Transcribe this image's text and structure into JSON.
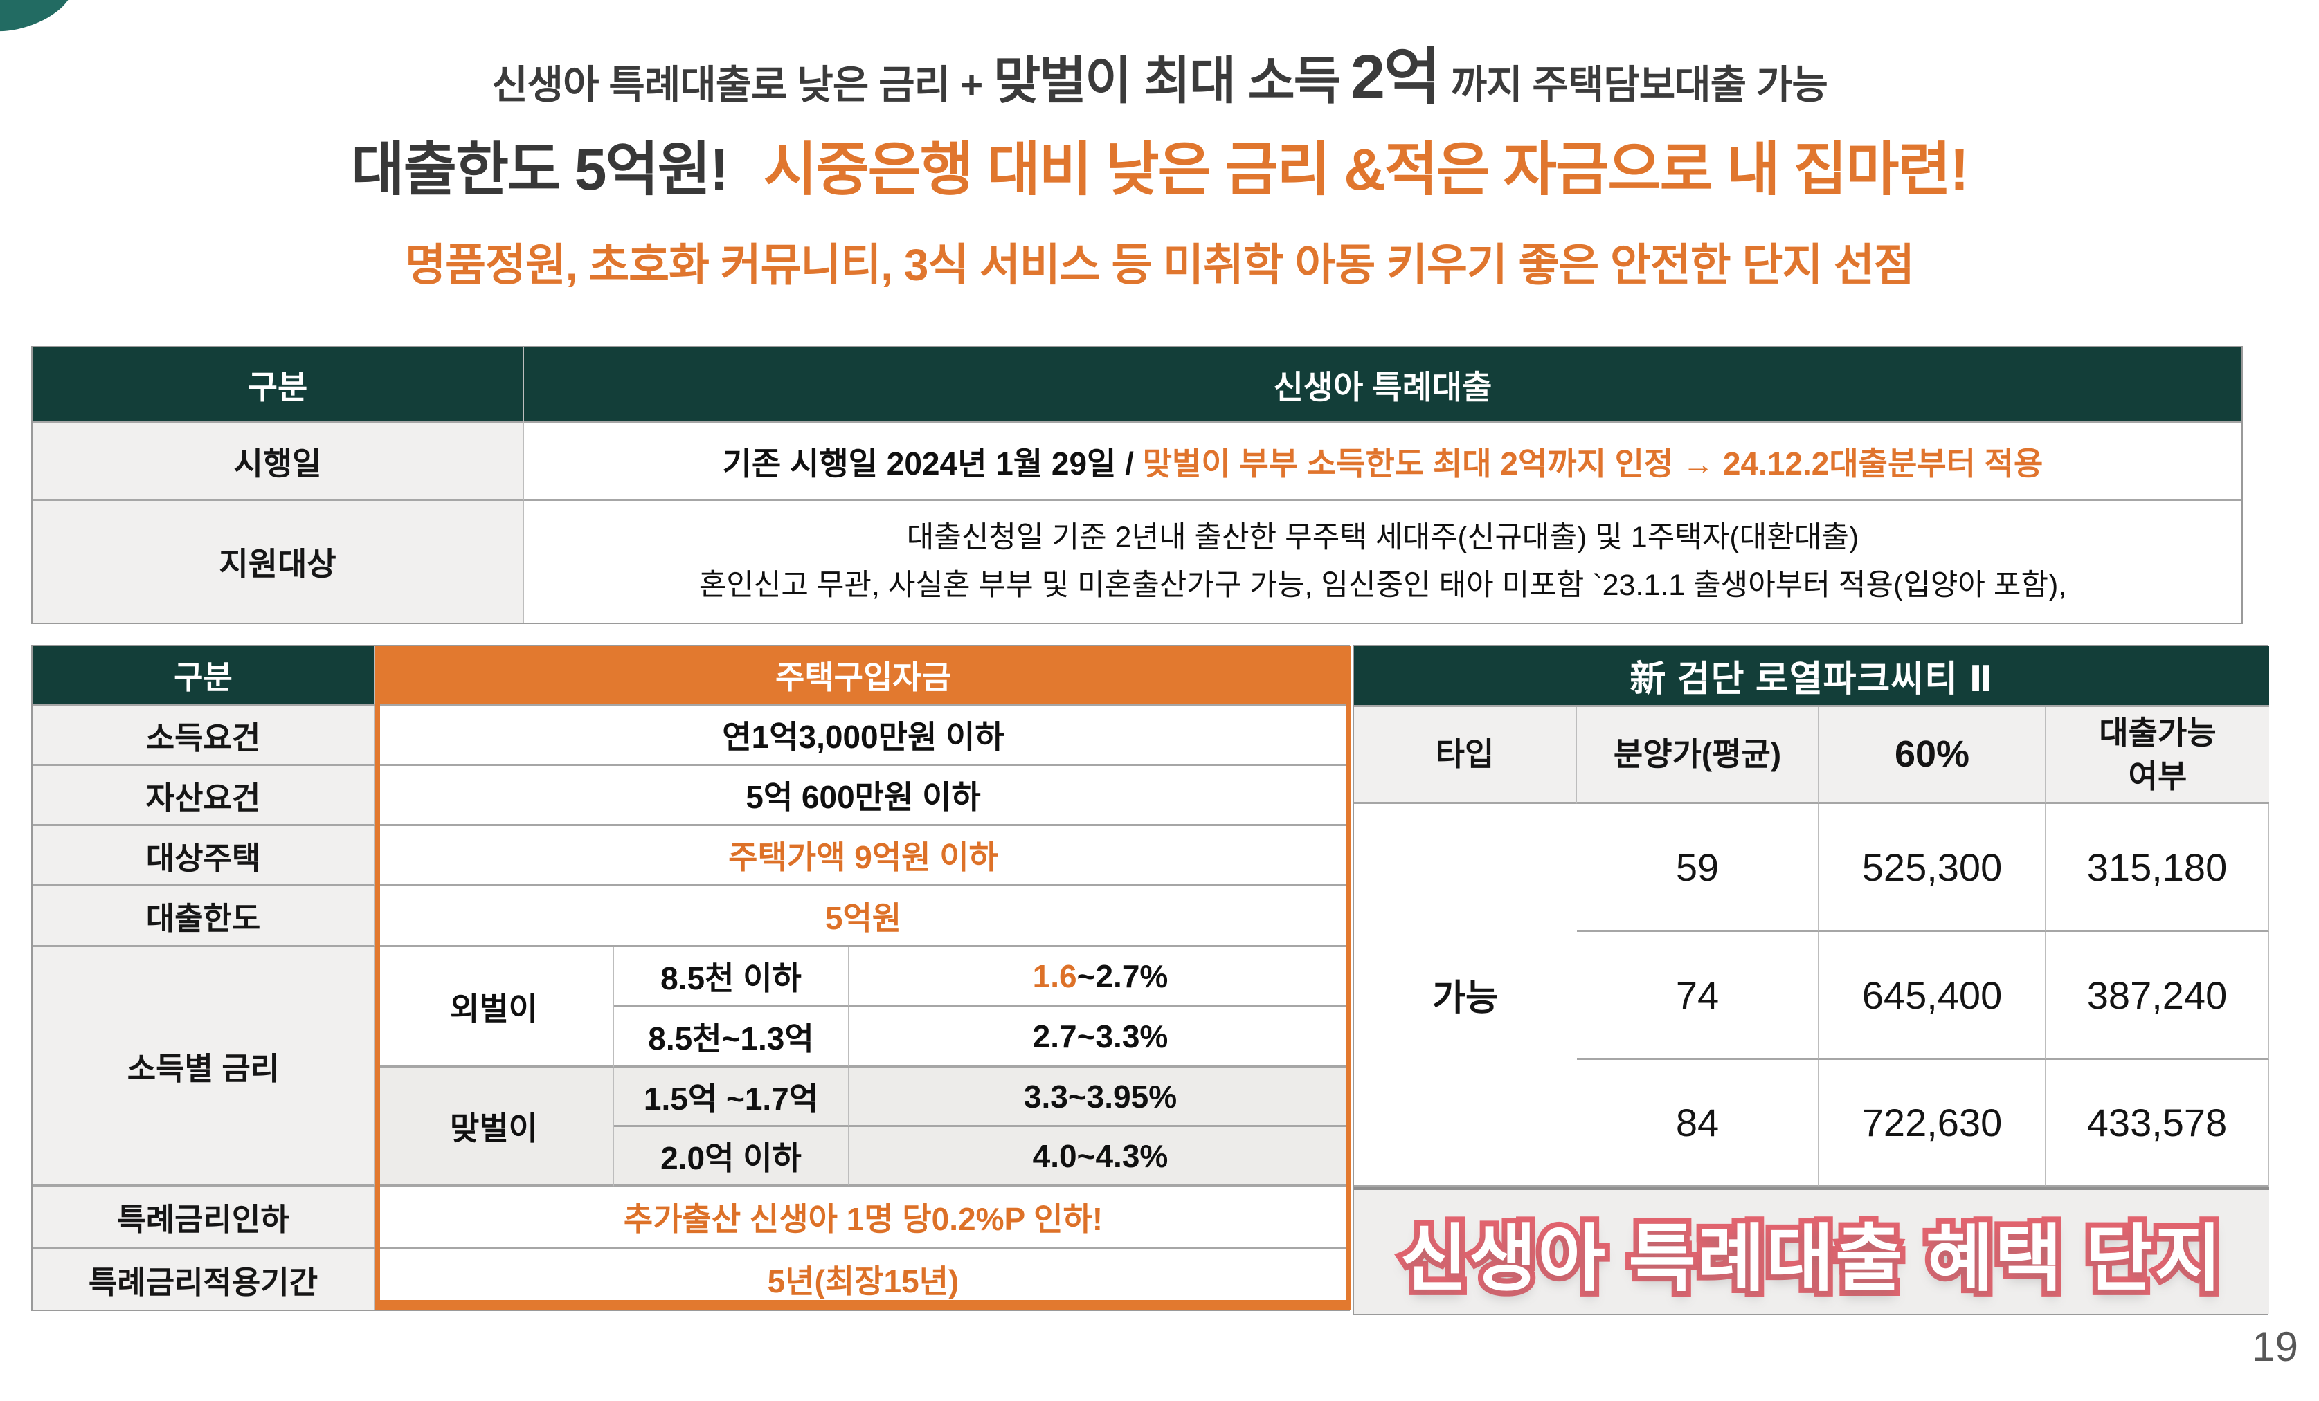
{
  "header": {
    "line1_part1": "신생아 특례대출로 낮은 금리 +",
    "line1_part2": "맞벌이 최대 소득",
    "line1_part3": "2억",
    "line1_part4": "까지 주택담보대출 가능",
    "line2_dark": "대출한도 5억원!",
    "line2_orange": "시중은행 대비 낮은 금리 &적은 자금으로 내 집마련!",
    "line3": "명품정원, 초호화 커뮤니티, 3식 서비스 등 미취학 아동 키우기 좋은 안전한 단지 선점"
  },
  "loan_table": {
    "col1_header": "구분",
    "col2_header": "신생아 특례대출",
    "row1_label": "시행일",
    "row1_black": "기존 시행일 2024년 1월 29일  / ",
    "row1_orange": "맞벌이 부부 소득한도 최대 2억까지 인정  → 24.12.2대출분부터 적용",
    "row2_label": "지원대상",
    "row2_line1": "대출신청일 기준 2년내 출산한 무주택 세대주(신규대출) 및 1주택자(대환대출)",
    "row2_line2": "혼인신고 무관, 사실혼 부부 및 미혼출산가구 가능, 임신중인 태아 미포함 `23.1.1 출생아부터 적용(입양아 포함),"
  },
  "purchase_table": {
    "col1_header": "구분",
    "col2_header": "주택구입자금",
    "income_label": "소득요건",
    "income_value": "연1억3,000만원 이하",
    "asset_label": "자산요건",
    "asset_value": "5억 600만원 이하",
    "house_label": "대상주택",
    "house_value": "주택가액 9억원 이하",
    "limit_label": "대출한도",
    "limit_value": "5억원",
    "rate_label": "소득별 금리",
    "single_label": "외벌이",
    "dual_label": "맞벌이",
    "rate_rows": [
      {
        "income": "8.5천 이하",
        "rate_highlight": "1.6",
        "rate_rest": "~2.7%"
      },
      {
        "income": "8.5천~1.3억",
        "rate": "2.7~3.3%"
      },
      {
        "income": "1.5억 ~1.7억",
        "rate": "3.3~3.95%"
      },
      {
        "income": "2.0억 이하",
        "rate": "4.0~4.3%"
      }
    ],
    "cut_label": "특례금리인하",
    "cut_value": "추가출산 신생아 1명 당0.2%P 인하!",
    "period_label": "특례금리적용기간",
    "period_value": "5년(최장15년)"
  },
  "complex_table": {
    "title": "新 검단 로열파크씨티 Ⅱ",
    "col_type": "타입",
    "col_price": "분양가(평균)",
    "col_sixty": "60%",
    "col_eligibility": "대출가능\n여부",
    "rows": [
      {
        "type": "59",
        "price": "525,300",
        "sixty": "315,180"
      },
      {
        "type": "74",
        "price": "645,400",
        "sixty": "387,240"
      },
      {
        "type": "84",
        "price": "722,630",
        "sixty": "433,578"
      }
    ],
    "eligibility": "가능",
    "banner": "신생아 특례대출 혜택 단지"
  },
  "page_number": "19",
  "colors": {
    "teal_header": "#133e39",
    "orange_accent": "#e2792f",
    "orange_text": "#e0762e",
    "banner_pink": "#e2646f",
    "label_gray": "#f1f0ef"
  }
}
